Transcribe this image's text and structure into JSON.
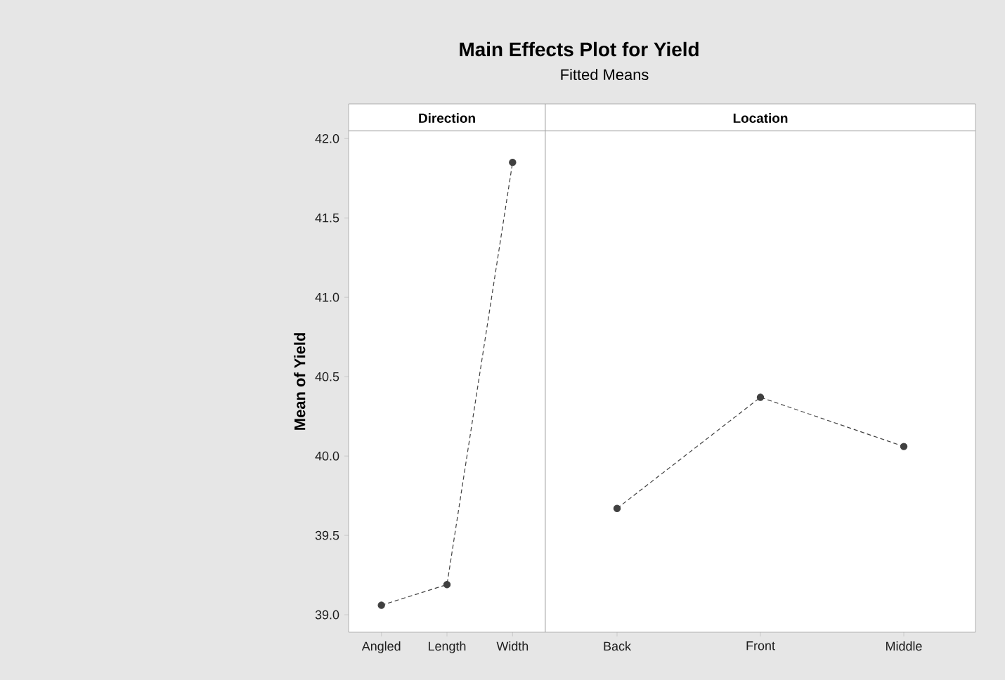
{
  "chart_data": [
    {
      "type": "line",
      "annotations": [
        "Direction",
        "Main Effects Plot for Yield",
        "Fitted Means"
      ],
      "ylabel": "Mean of Yield",
      "categories": [
        "Angled",
        "Length",
        "Width"
      ],
      "values": [
        39.06,
        39.19,
        41.85
      ],
      "color": "#404040",
      "marker": "circle",
      "line_style": "dashed",
      "ylim": [
        38.89,
        42.05
      ],
      "yticks": [
        {
          "value": 39,
          "label": "39.0"
        },
        {
          "value": 39.5,
          "label": "39.5"
        },
        {
          "value": 40,
          "label": "40.0"
        },
        {
          "value": 40.5,
          "label": "40.5"
        },
        {
          "value": 41,
          "label": "41.0"
        },
        {
          "value": 41.5,
          "label": "41.5"
        },
        {
          "value": 42,
          "label": "42.0"
        }
      ]
    },
    {
      "type": "line",
      "annotations": [
        "Location"
      ],
      "categories": [
        "Back",
        "Front",
        "Middle"
      ],
      "values": [
        39.67,
        40.37,
        40.06
      ],
      "color": "#404040",
      "marker": "circle",
      "line_style": "dashed",
      "ylim": [
        38.89,
        42.05
      ],
      "tick_labels": "x"
    }
  ]
}
